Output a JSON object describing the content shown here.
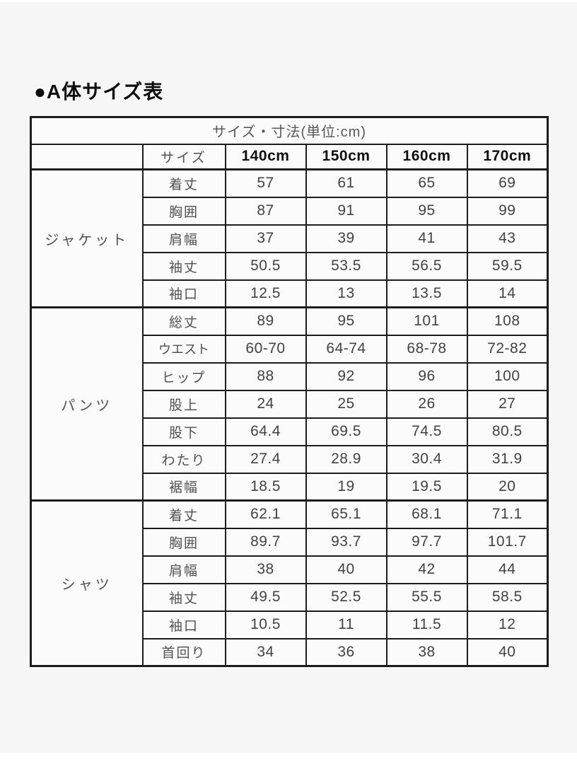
{
  "page": {
    "title": "●A体サイズ表"
  },
  "colors": {
    "border": "#1c1c1c",
    "header_bg": "#ededed",
    "cell_bg": "#fbfbfb",
    "label_text": "#505050",
    "value_text": "#424242",
    "strong_text": "#0e0e0e",
    "page_bg": "#f6f6f6"
  },
  "table": {
    "caption": "サイズ・寸法(単位:cm)",
    "size_label": "サイズ",
    "size_columns": [
      "140cm",
      "150cm",
      "160cm",
      "170cm"
    ],
    "sections": [
      {
        "category": "ジャケット",
        "rows": [
          {
            "label": "着丈",
            "values": [
              "57",
              "61",
              "65",
              "69"
            ]
          },
          {
            "label": "胸囲",
            "values": [
              "87",
              "91",
              "95",
              "99"
            ]
          },
          {
            "label": "肩幅",
            "values": [
              "37",
              "39",
              "41",
              "43"
            ]
          },
          {
            "label": "袖丈",
            "values": [
              "50.5",
              "53.5",
              "56.5",
              "59.5"
            ]
          },
          {
            "label": "袖口",
            "values": [
              "12.5",
              "13",
              "13.5",
              "14"
            ]
          }
        ]
      },
      {
        "category": "パンツ",
        "rows": [
          {
            "label": "総丈",
            "values": [
              "89",
              "95",
              "101",
              "108"
            ]
          },
          {
            "label": "ウエスト",
            "values": [
              "60-70",
              "64-74",
              "68-78",
              "72-82"
            ]
          },
          {
            "label": "ヒップ",
            "values": [
              "88",
              "92",
              "96",
              "100"
            ]
          },
          {
            "label": "股上",
            "values": [
              "24",
              "25",
              "26",
              "27"
            ]
          },
          {
            "label": "股下",
            "values": [
              "64.4",
              "69.5",
              "74.5",
              "80.5"
            ]
          },
          {
            "label": "わたり",
            "values": [
              "27.4",
              "28.9",
              "30.4",
              "31.9"
            ]
          },
          {
            "label": "裾幅",
            "values": [
              "18.5",
              "19",
              "19.5",
              "20"
            ]
          }
        ]
      },
      {
        "category": "シャツ",
        "rows": [
          {
            "label": "着丈",
            "values": [
              "62.1",
              "65.1",
              "68.1",
              "71.1"
            ]
          },
          {
            "label": "胸囲",
            "values": [
              "89.7",
              "93.7",
              "97.7",
              "101.7"
            ]
          },
          {
            "label": "肩幅",
            "values": [
              "38",
              "40",
              "42",
              "44"
            ]
          },
          {
            "label": "袖丈",
            "values": [
              "49.5",
              "52.5",
              "55.5",
              "58.5"
            ]
          },
          {
            "label": "袖口",
            "values": [
              "10.5",
              "11",
              "11.5",
              "12"
            ]
          },
          {
            "label": "首回り",
            "values": [
              "34",
              "36",
              "38",
              "40"
            ]
          }
        ]
      }
    ]
  }
}
